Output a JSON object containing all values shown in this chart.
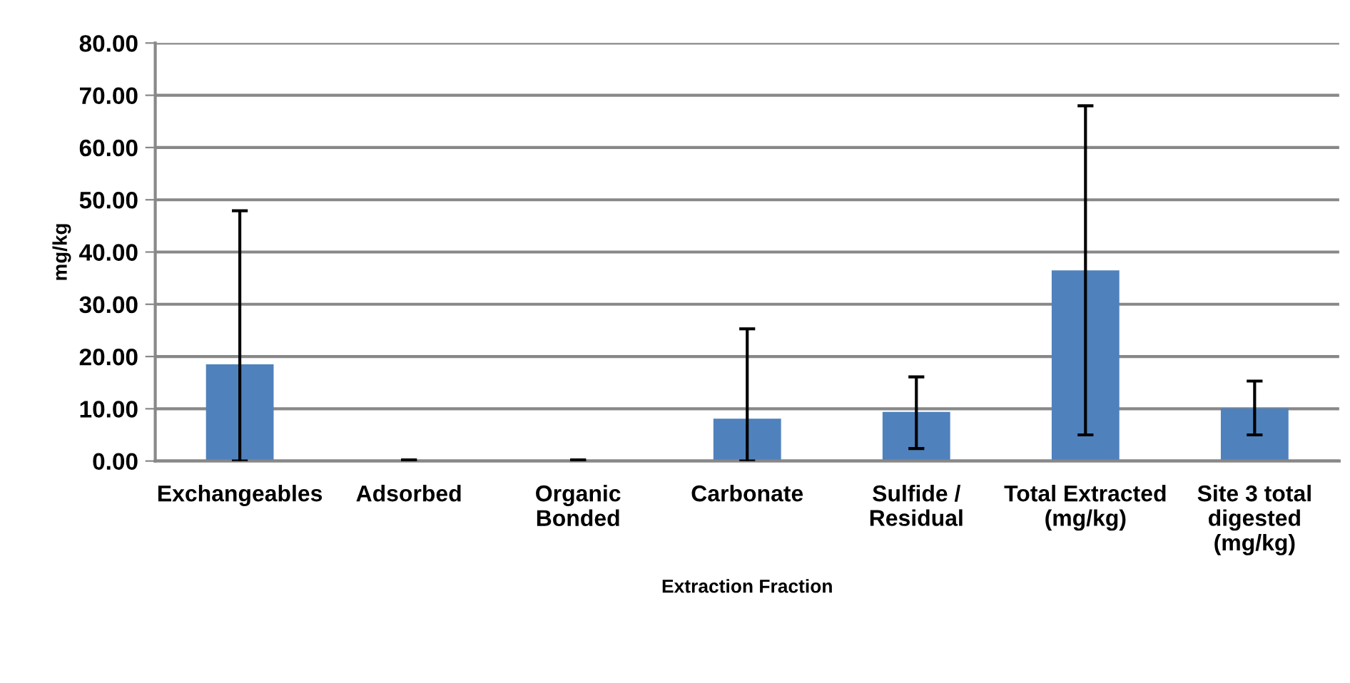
{
  "chart_data": {
    "type": "bar",
    "xlabel": "Extraction Fraction",
    "ylabel": "mg/kg",
    "categories": [
      "Exchangeables",
      "Adsorbed",
      "Organic\nBonded",
      "Carbonate",
      "Sulfide /\nResidual",
      "Total Extracted\n(mg/kg)",
      "Site 3 total\ndigested\n(mg/kg)"
    ],
    "values": [
      18.5,
      0.1,
      0.1,
      8.1,
      9.4,
      36.5,
      10.1
    ],
    "errors": [
      [
        0,
        47.9
      ],
      [
        0,
        0.2
      ],
      [
        0,
        0.2
      ],
      [
        0,
        25.3
      ],
      [
        2.4,
        16.1
      ],
      [
        5.0,
        68.0
      ],
      [
        5.0,
        15.3
      ]
    ],
    "color": "#4f81bd",
    "ylim": [
      0,
      80
    ],
    "yticks": [
      {
        "value": 0,
        "label": "0.00"
      },
      {
        "value": 10,
        "label": "10.00"
      },
      {
        "value": 20,
        "label": "20.00"
      },
      {
        "value": 30,
        "label": "30.00"
      },
      {
        "value": 40,
        "label": "40.00"
      },
      {
        "value": 50,
        "label": "50.00"
      },
      {
        "value": 60,
        "label": "60.00"
      },
      {
        "value": 70,
        "label": "70.00"
      },
      {
        "value": 80,
        "label": "80.00"
      }
    ],
    "grid": "y"
  }
}
